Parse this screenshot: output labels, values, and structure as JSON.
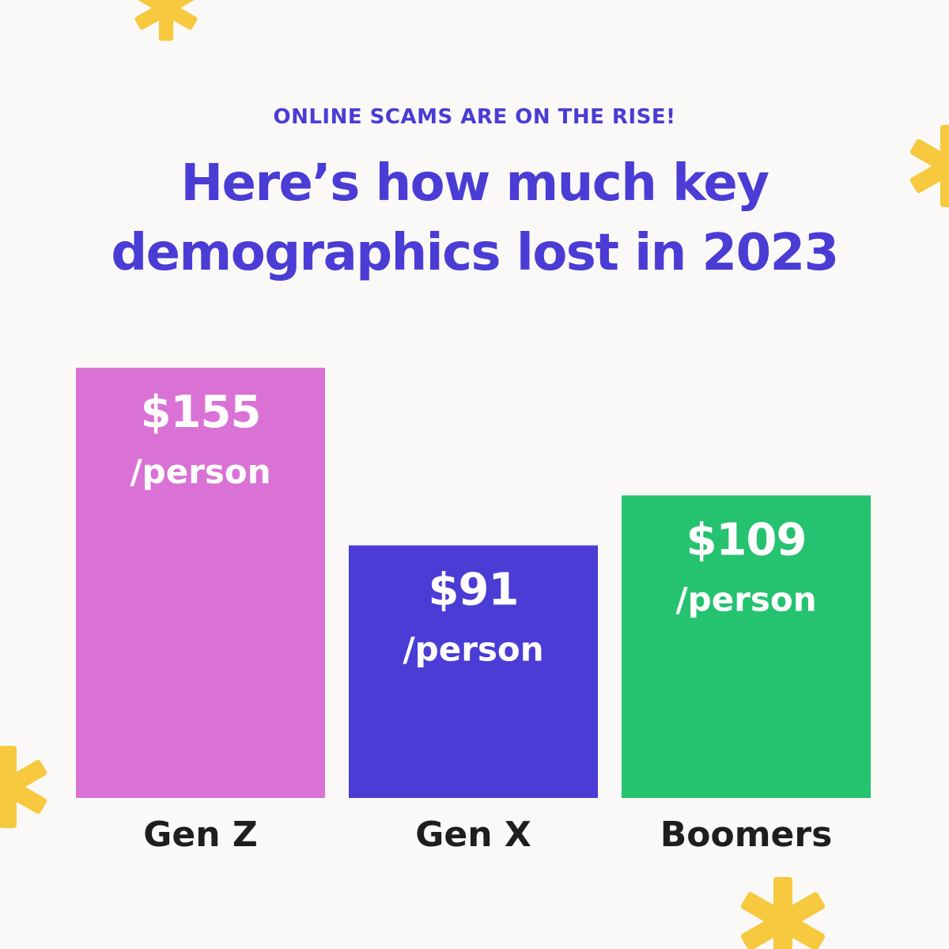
{
  "header": {
    "eyebrow": "ONLINE SCAMS ARE ON THE RISE!",
    "title_line1": "Here’s how much key",
    "title_line2": "demographics lost in 2023"
  },
  "colors": {
    "background": "#FAF9F7",
    "accent": "#4A3CD4",
    "asterisk": "#F6C93E",
    "label_text": "#1E1E1E"
  },
  "decorations": [
    "asterisk-icon",
    "asterisk-icon",
    "asterisk-icon",
    "asterisk-icon"
  ],
  "chart_data": {
    "type": "bar",
    "title": "Here’s how much key demographics lost in 2023",
    "subtitle": "ONLINE SCAMS ARE ON THE RISE!",
    "categories": [
      "Gen Z",
      "Gen X",
      "Boomers"
    ],
    "values": [
      155,
      91,
      109
    ],
    "value_labels": [
      "$155",
      "$91",
      "$109"
    ],
    "unit_label": "/person",
    "bar_colors": [
      "#DA72D6",
      "#4A3CD4",
      "#25C270"
    ],
    "xlabel": "",
    "ylabel": "",
    "grid": false,
    "legend": "none"
  }
}
